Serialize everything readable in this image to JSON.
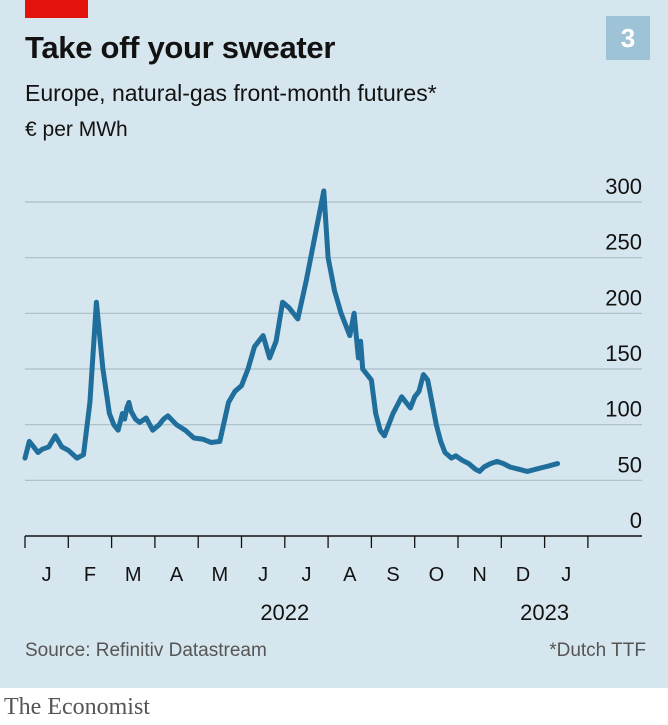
{
  "badge": "3",
  "source": "Source: Refinitiv Datastream",
  "footnote": "*Dutch TTF",
  "brand": "The Economist",
  "chart_data": {
    "type": "line",
    "title": "Take off your sweater",
    "subtitle": "Europe, natural-gas front-month futures*",
    "ylabel": "€ per MWh",
    "ylim": [
      0,
      300
    ],
    "yticks": [
      0,
      50,
      100,
      150,
      200,
      250,
      300
    ],
    "ytick_labels": [
      "0",
      "50",
      "100",
      "150",
      "200",
      "250",
      "300"
    ],
    "months": [
      "J",
      "F",
      "M",
      "A",
      "M",
      "J",
      "J",
      "A",
      "S",
      "O",
      "N",
      "D",
      "J"
    ],
    "year_labels": [
      {
        "label": "2022",
        "month_index": 6
      },
      {
        "label": "2023",
        "month_index": 12
      }
    ],
    "x_range_months": [
      0,
      13.5
    ],
    "series": [
      {
        "name": "Europe, natural-gas front-month futures",
        "color": "#1f6e9c",
        "x": [
          0.0,
          0.1,
          0.2,
          0.3,
          0.4,
          0.55,
          0.7,
          0.85,
          1.0,
          1.2,
          1.35,
          1.5,
          1.65,
          1.8,
          1.95,
          2.05,
          2.15,
          2.25,
          2.3,
          2.35,
          2.4,
          2.45,
          2.55,
          2.65,
          2.8,
          2.95,
          3.1,
          3.2,
          3.3,
          3.5,
          3.7,
          3.9,
          4.1,
          4.3,
          4.5,
          4.7,
          4.85,
          5.0,
          5.15,
          5.3,
          5.5,
          5.65,
          5.8,
          5.95,
          6.1,
          6.3,
          6.5,
          6.7,
          6.9,
          7.0,
          7.15,
          7.3,
          7.5,
          7.6,
          7.7,
          7.75,
          7.8,
          7.9,
          8.0,
          8.1,
          8.2,
          8.3,
          8.5,
          8.7,
          8.9,
          9.0,
          9.1,
          9.2,
          9.3,
          9.4,
          9.5,
          9.6,
          9.7,
          9.85,
          9.95,
          10.1,
          10.25,
          10.4,
          10.5,
          10.6,
          10.75,
          10.9,
          11.05,
          11.2,
          11.4,
          11.6,
          11.8,
          12.0,
          12.1,
          12.2,
          12.3
        ],
        "values": [
          70,
          85,
          80,
          75,
          78,
          80,
          90,
          80,
          77,
          70,
          73,
          120,
          210,
          150,
          110,
          100,
          95,
          110,
          105,
          115,
          120,
          112,
          105,
          102,
          106,
          95,
          100,
          105,
          108,
          100,
          95,
          88,
          87,
          84,
          85,
          120,
          130,
          135,
          150,
          170,
          180,
          160,
          175,
          210,
          205,
          195,
          230,
          270,
          310,
          250,
          220,
          200,
          180,
          200,
          160,
          175,
          150,
          145,
          140,
          110,
          95,
          90,
          110,
          125,
          115,
          125,
          130,
          145,
          140,
          120,
          100,
          85,
          75,
          70,
          72,
          68,
          65,
          60,
          58,
          62,
          65,
          67,
          65,
          62,
          60,
          58,
          60,
          62,
          63,
          64,
          65
        ]
      }
    ]
  }
}
